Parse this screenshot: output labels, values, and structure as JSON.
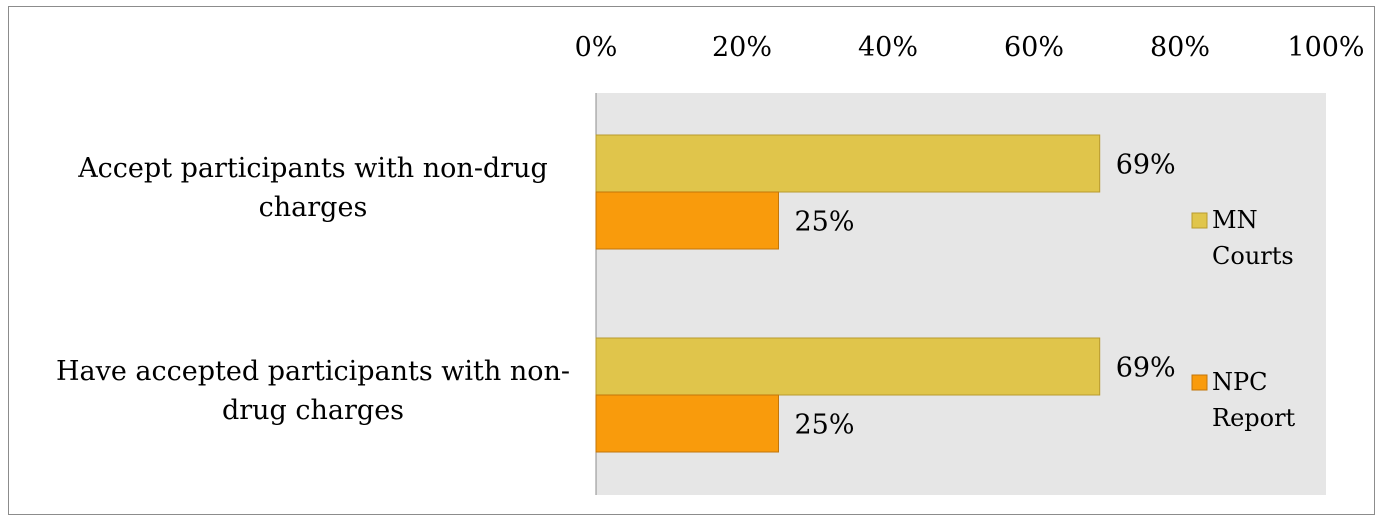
{
  "chart_data": {
    "type": "bar",
    "orientation": "horizontal",
    "categories": [
      [
        "Accept participants with non-drug",
        "charges"
      ],
      [
        "Have accepted participants with non-",
        "drug charges"
      ]
    ],
    "series": [
      {
        "name": "MN Courts",
        "legend_lines": [
          "MN",
          "Courts"
        ],
        "values": [
          69,
          69
        ],
        "color": "#e0c54b",
        "border": "#b89a2e"
      },
      {
        "name": "NPC Report",
        "legend_lines": [
          "NPC",
          "Report"
        ],
        "values": [
          25,
          25
        ],
        "color": "#f99b0c",
        "border": "#c2760a"
      }
    ],
    "value_labels": [
      [
        "69%",
        "69%"
      ],
      [
        "25%",
        "25%"
      ]
    ],
    "x_ticks": [
      "0%",
      "20%",
      "40%",
      "60%",
      "80%",
      "100%"
    ],
    "x_tick_values": [
      0,
      20,
      40,
      60,
      80,
      100
    ],
    "xlim": [
      0,
      100
    ],
    "x_axis_position": "top",
    "plot_background": "#e6e6e6",
    "grid": false,
    "legend_position": "right",
    "title": "",
    "xlabel": "",
    "ylabel": ""
  }
}
